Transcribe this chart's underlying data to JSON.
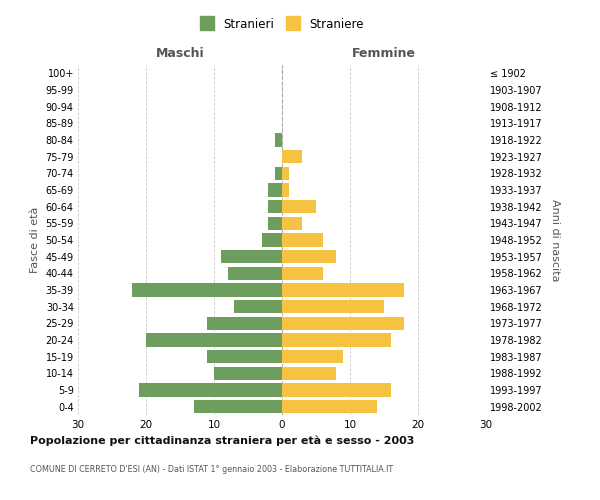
{
  "age_groups": [
    "0-4",
    "5-9",
    "10-14",
    "15-19",
    "20-24",
    "25-29",
    "30-34",
    "35-39",
    "40-44",
    "45-49",
    "50-54",
    "55-59",
    "60-64",
    "65-69",
    "70-74",
    "75-79",
    "80-84",
    "85-89",
    "90-94",
    "95-99",
    "100+"
  ],
  "birth_years": [
    "1998-2002",
    "1993-1997",
    "1988-1992",
    "1983-1987",
    "1978-1982",
    "1973-1977",
    "1968-1972",
    "1963-1967",
    "1958-1962",
    "1953-1957",
    "1948-1952",
    "1943-1947",
    "1938-1942",
    "1933-1937",
    "1928-1932",
    "1923-1927",
    "1918-1922",
    "1913-1917",
    "1908-1912",
    "1903-1907",
    "≤ 1902"
  ],
  "males": [
    13,
    21,
    10,
    11,
    20,
    11,
    7,
    22,
    8,
    9,
    3,
    2,
    2,
    2,
    1,
    0,
    1,
    0,
    0,
    0,
    0
  ],
  "females": [
    14,
    16,
    8,
    9,
    16,
    18,
    15,
    18,
    6,
    8,
    6,
    3,
    5,
    1,
    1,
    3,
    0,
    0,
    0,
    0,
    0
  ],
  "male_color": "#6d9e5e",
  "female_color": "#f5c242",
  "bar_height": 0.8,
  "xlim": 30,
  "title": "Popolazione per cittadinanza straniera per età e sesso - 2003",
  "subtitle": "COMUNE DI CERRETO D'ESI (AN) - Dati ISTAT 1° gennaio 2003 - Elaborazione TUTTITALIA.IT",
  "xlabel_left": "Maschi",
  "xlabel_right": "Femmine",
  "ylabel_left": "Fasce di età",
  "ylabel_right": "Anni di nascita",
  "legend_male": "Stranieri",
  "legend_female": "Straniere",
  "background_color": "#ffffff",
  "grid_color": "#cccccc"
}
